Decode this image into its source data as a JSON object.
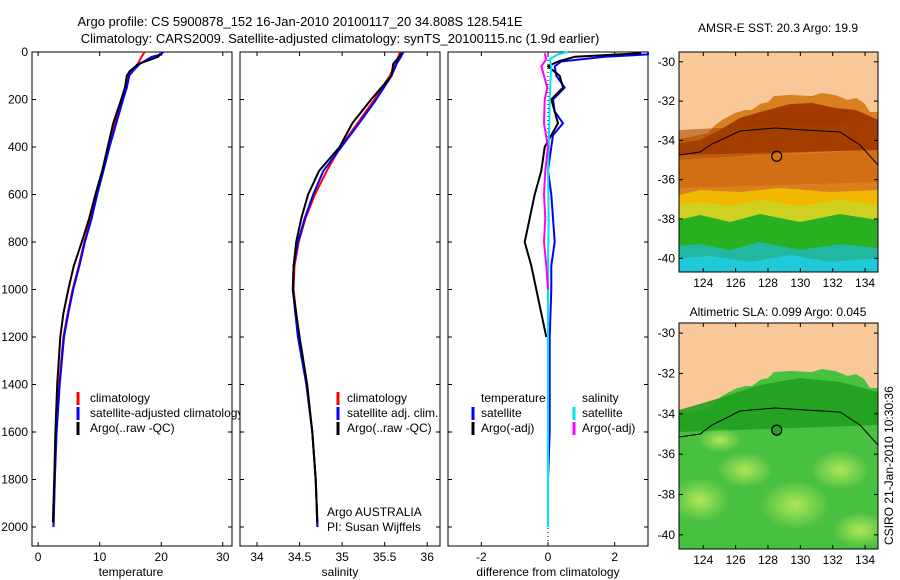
{
  "title": {
    "line1": "Argo profile: CS 5900878_152 16-Jan-2010 20100117_20 34.808S 128.541E",
    "line2": "Climatology: CARS2009. Satellite-adjusted climatology: synTS_20100115.nc (1.9d earlier)"
  },
  "stamp": "CSIRO 21-Jan-2010 10:30:36",
  "colors": {
    "climatology": "#ff0000",
    "satellite": "#0000ff",
    "argo": "#000000",
    "argo_sal_diff": "#ff00ff",
    "sat_sal_diff": "#00e5ee",
    "land": "#f8c898"
  },
  "chart_data": [
    {
      "type": "line",
      "id": "temperature-panel",
      "xlabel": "temperature",
      "xlim": [
        -1,
        31.5
      ],
      "ylim": [
        2080,
        0
      ],
      "xticks": [
        0,
        10,
        20,
        30
      ],
      "yticks": [
        0,
        200,
        400,
        600,
        800,
        1000,
        1200,
        1400,
        1600,
        1800,
        2000
      ],
      "legend": [
        "climatology",
        "satellite-adjusted climatology",
        "Argo(..raw -QC)"
      ],
      "series": [
        {
          "name": "climatology",
          "color": "climatology",
          "depth": [
            0,
            20,
            50,
            80,
            100,
            150,
            200,
            300,
            400,
            500,
            600,
            700,
            800,
            900,
            1000,
            1100,
            1200,
            1400,
            1600,
            1800,
            2000
          ],
          "values": [
            17.3,
            16.8,
            16.2,
            15.2,
            14.8,
            14.3,
            13.7,
            12.4,
            11.4,
            10.5,
            9.4,
            8.5,
            7.5,
            6.6,
            5.6,
            4.8,
            4.1,
            3.4,
            2.9,
            2.7,
            2.5
          ]
        },
        {
          "name": "satellite-adjusted climatology",
          "color": "satellite",
          "depth": [
            0,
            10,
            20,
            50,
            80,
            100,
            150,
            200,
            300,
            400,
            500,
            600,
            700,
            800,
            900,
            1000,
            1100,
            1200,
            1400,
            1600,
            1800,
            2000
          ],
          "values": [
            20.3,
            20.0,
            18.5,
            16.5,
            15.4,
            14.8,
            14.4,
            13.8,
            12.7,
            11.6,
            10.6,
            9.6,
            8.7,
            7.6,
            6.7,
            5.7,
            4.9,
            4.2,
            3.5,
            3.0,
            2.7,
            2.5
          ]
        },
        {
          "name": "Argo(..raw -QC)",
          "color": "argo",
          "depth": [
            5,
            20,
            50,
            80,
            100,
            150,
            200,
            300,
            400,
            500,
            600,
            700,
            800,
            900,
            1000,
            1100,
            1200,
            1400,
            1600,
            1800,
            1980
          ],
          "values": [
            19.9,
            19.5,
            16.3,
            14.9,
            14.4,
            14.1,
            13.5,
            12.2,
            11.3,
            10.4,
            9.3,
            8.3,
            7.1,
            5.8,
            4.9,
            4.1,
            3.6,
            3.1,
            2.8,
            2.6,
            2.4
          ]
        }
      ]
    },
    {
      "type": "line",
      "id": "salinity-panel",
      "xlabel": "salinity",
      "xlim": [
        33.8,
        36.15
      ],
      "ylim": [
        2080,
        0
      ],
      "xticks": [
        34,
        34.5,
        35,
        35.5,
        36
      ],
      "legend": [
        "climatology",
        "satellite adj. clim.",
        "Argo(..raw -QC)"
      ],
      "annotation": [
        "Argo AUSTRALIA",
        "PI: Susan Wijffels"
      ],
      "series": [
        {
          "name": "climatology",
          "color": "climatology",
          "depth": [
            0,
            20,
            50,
            100,
            200,
            300,
            400,
            500,
            600,
            700,
            800,
            900,
            1000,
            1200,
            1400,
            1600,
            1800,
            2000
          ],
          "values": [
            35.68,
            35.66,
            35.63,
            35.56,
            35.38,
            35.18,
            34.98,
            34.82,
            34.68,
            34.57,
            34.49,
            34.44,
            34.43,
            34.49,
            34.58,
            34.65,
            34.69,
            34.71
          ]
        },
        {
          "name": "satellite adj. clim.",
          "color": "satellite",
          "depth": [
            0,
            20,
            50,
            100,
            200,
            300,
            400,
            500,
            600,
            700,
            800,
            900,
            1000,
            1200,
            1400,
            1600,
            1800,
            2000
          ],
          "values": [
            35.72,
            35.69,
            35.64,
            35.58,
            35.4,
            35.2,
            34.99,
            34.78,
            34.66,
            34.56,
            34.48,
            34.43,
            34.42,
            34.48,
            34.58,
            34.65,
            34.69,
            34.71
          ]
        },
        {
          "name": "Argo(..raw -QC)",
          "color": "argo",
          "depth": [
            5,
            20,
            50,
            100,
            200,
            300,
            400,
            500,
            600,
            700,
            800,
            900,
            1000,
            1200,
            1400,
            1600,
            1800,
            1980
          ],
          "values": [
            35.7,
            35.67,
            35.6,
            35.58,
            35.34,
            35.12,
            34.97,
            34.73,
            34.6,
            34.52,
            34.46,
            34.43,
            34.42,
            34.5,
            34.59,
            34.65,
            34.69,
            34.71
          ]
        }
      ]
    },
    {
      "type": "line",
      "id": "difference-panel",
      "xlabel": "difference from climatology",
      "xlim": [
        -3,
        3
      ],
      "ylim": [
        2080,
        0
      ],
      "xticks": [
        -2,
        0,
        2
      ],
      "legend_left": [
        "temperature",
        "satellite",
        "Argo(-adj)"
      ],
      "legend_right": [
        "salinity",
        "satellite",
        "Argo(-adj)"
      ],
      "series": [
        {
          "name": "temperature satellite",
          "color": "satellite",
          "depth": [
            0,
            10,
            20,
            40,
            60,
            100,
            150,
            200,
            250,
            300,
            350,
            400,
            500,
            600,
            700,
            800,
            900,
            1000,
            1200,
            1400,
            1600,
            1800,
            2000
          ],
          "values": [
            3.0,
            3.0,
            1.7,
            0.4,
            0.2,
            0.25,
            0.5,
            0.15,
            0.2,
            0.45,
            0.15,
            0.1,
            0.0,
            0.1,
            0.15,
            0.2,
            0.1,
            0.1,
            0.05,
            0.05,
            0.05,
            0.0,
            0.0
          ]
        },
        {
          "name": "temperature Argo(-adj)",
          "color": "argo",
          "depth": [
            5,
            20,
            40,
            60,
            100,
            150,
            200,
            300,
            400,
            500,
            600,
            700,
            800,
            900,
            1000,
            1100,
            1200
          ],
          "values": [
            2.8,
            0.8,
            0.3,
            0.0,
            0.35,
            0.45,
            0.1,
            0.3,
            -0.1,
            -0.2,
            -0.4,
            -0.55,
            -0.7,
            -0.5,
            -0.35,
            -0.2,
            -0.05
          ]
        },
        {
          "name": "salinity satellite",
          "color": "sat_sal_diff",
          "depth": [
            0,
            10,
            30,
            60,
            100,
            200,
            300,
            400,
            500,
            700,
            900,
            1200,
            1500,
            1800,
            2000
          ],
          "values": [
            0.6,
            0.3,
            0.05,
            0.1,
            0.08,
            0.05,
            0.04,
            0.02,
            0.0,
            0.02,
            0.0,
            0.0,
            0.0,
            0.0,
            0.0
          ]
        },
        {
          "name": "salinity Argo(-adj)",
          "color": "argo_sal_diff",
          "depth": [
            5,
            30,
            60,
            100,
            150,
            200,
            300,
            400,
            500,
            600,
            700,
            800,
            900,
            1000
          ],
          "values": [
            -0.1,
            -0.05,
            -0.2,
            -0.12,
            -0.02,
            -0.1,
            -0.12,
            0.0,
            -0.08,
            -0.12,
            -0.08,
            -0.12,
            -0.05,
            0.0
          ]
        }
      ]
    },
    {
      "type": "heatmap",
      "id": "sst-map",
      "title": "AMSR-E SST: 20.3  Argo: 19.9",
      "xlim": [
        122.5,
        134.8
      ],
      "ylim": [
        -40.7,
        -29.5
      ],
      "xticks": [
        124,
        126,
        128,
        130,
        132,
        134
      ],
      "yticks": [
        -30,
        -32,
        -34,
        -36,
        -38,
        -40
      ],
      "marker": [
        128.541,
        -34.808
      ]
    },
    {
      "type": "heatmap",
      "id": "sla-map",
      "title": "Altimetric SLA: 0.099  Argo: 0.045",
      "xlim": [
        122.5,
        134.8
      ],
      "ylim": [
        -40.7,
        -29.5
      ],
      "xticks": [
        124,
        126,
        128,
        130,
        132,
        134
      ],
      "yticks": [
        -30,
        -32,
        -34,
        -36,
        -38,
        -40
      ],
      "marker": [
        128.541,
        -34.808
      ]
    }
  ]
}
